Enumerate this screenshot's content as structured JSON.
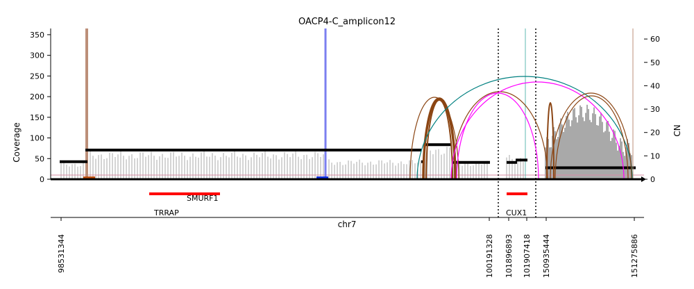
{
  "chart_data": {
    "type": "area",
    "title": "OACP4-C_amplicon12",
    "ylabel": "Coverage",
    "ylabel_right": "CN",
    "xlabel": "chr7",
    "ylim": [
      0,
      365
    ],
    "ylim_right": [
      0,
      64.5
    ],
    "yticks": [
      0,
      50,
      100,
      150,
      200,
      250,
      300,
      350
    ],
    "yticks_right": [
      0,
      10,
      20,
      30,
      40,
      50,
      60
    ],
    "x_ticks": [
      "98531344",
      "100191328",
      "101896893",
      "101907418",
      "150935444",
      "151275886"
    ],
    "genes": [
      {
        "name": "TRRAP",
        "color": "#ff0000"
      },
      {
        "name": "SMURF1",
        "color": "#ff0000"
      },
      {
        "name": "CUX1",
        "color": "#ff0000"
      }
    ],
    "cn_segments": [
      {
        "cn": 7.5
      },
      {
        "cn": 12.5
      },
      {
        "cn": 12.5
      },
      {
        "cn": 7.5
      },
      {
        "cn": 14.8
      },
      {
        "cn": 7.2
      },
      {
        "cn": 7.2
      },
      {
        "cn": 8.2
      },
      {
        "cn": 4.9
      },
      {
        "cn": 6.5
      }
    ],
    "coverage_profile": [
      {
        "region": 1,
        "mean_coverage": 40
      },
      {
        "region": 2,
        "mean_coverage": 64
      },
      {
        "region": 3,
        "mean_coverage": 45
      },
      {
        "region": 4,
        "mean_coverage": 78
      },
      {
        "region": 5,
        "mean_coverage": 42
      },
      {
        "region": 6,
        "mean_coverage": 55
      },
      {
        "region": 7,
        "mean_coverage": 140
      }
    ],
    "breakpoint_lines": [
      {
        "color": "#bc8f79",
        "height_coverage": 365
      },
      {
        "color": "#7b7ff0",
        "height_coverage": 365
      },
      {
        "color": "#5fb8b0",
        "height_coverage": 365
      }
    ],
    "discordant_edges_colors": {
      "everted": "#8b4513",
      "discordant": "#008080",
      "inverted": "#ff00ff"
    },
    "grid": false,
    "legend": "none"
  }
}
